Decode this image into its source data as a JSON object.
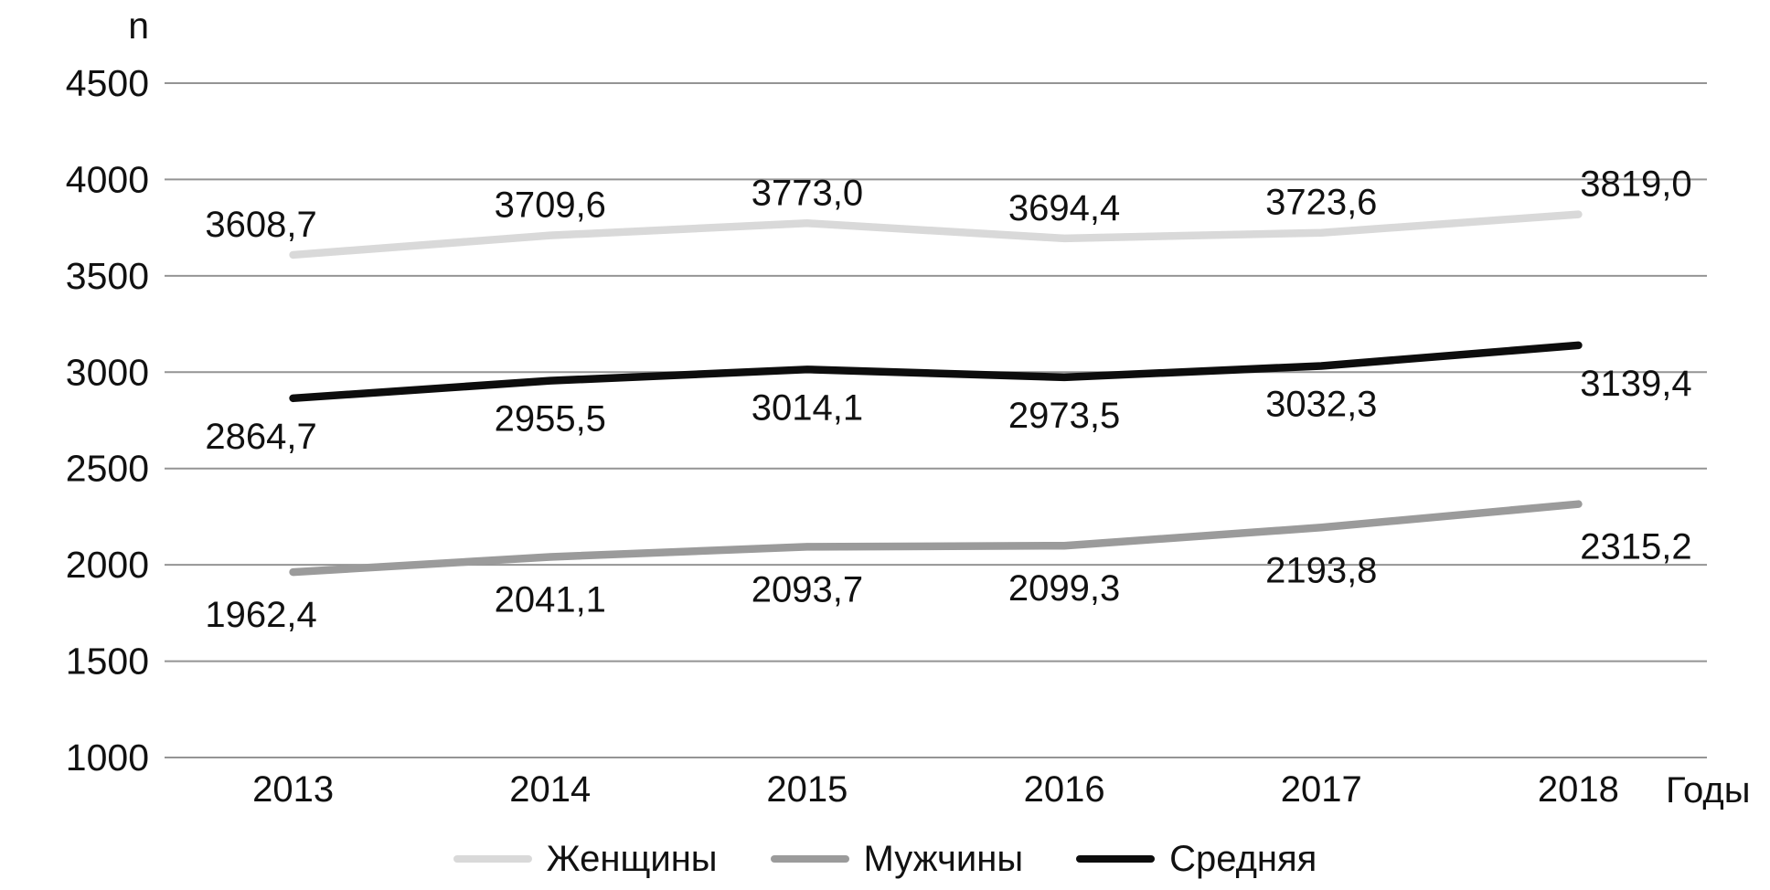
{
  "chart_data": {
    "type": "line",
    "title": "",
    "ylabel": "n",
    "xlabel": "Годы",
    "categories": [
      "2013",
      "2014",
      "2015",
      "2016",
      "2017",
      "2018"
    ],
    "y_ticks": [
      "4500",
      "4000",
      "3500",
      "3000",
      "2500",
      "2000",
      "1500",
      "1000"
    ],
    "ylim": [
      1000,
      4500
    ],
    "grid": true,
    "legend_position": "bottom",
    "series": [
      {
        "name": "Женщины",
        "color": "#d9d9d9",
        "values": [
          3608.7,
          3709.6,
          3773.0,
          3694.4,
          3723.6,
          3819.0
        ],
        "labels": [
          "3608,7",
          "3709,6",
          "3773,0",
          "3694,4",
          "3723,6",
          "3819,0"
        ],
        "label_side": "above"
      },
      {
        "name": "Мужчины",
        "color": "#9b9b9b",
        "values": [
          1962.4,
          2041.1,
          2093.7,
          2099.3,
          2193.8,
          2315.2
        ],
        "labels": [
          "1962,4",
          "2041,1",
          "2093,7",
          "2099,3",
          "2193,8",
          "2315,2"
        ],
        "label_side": "below"
      },
      {
        "name": "Средняя",
        "color": "#0d0d0d",
        "values": [
          2864.7,
          2955.5,
          3014.1,
          2973.5,
          3032.3,
          3139.4
        ],
        "labels": [
          "2864,7",
          "2955,5",
          "3014,1",
          "2973,5",
          "3032,3",
          "3139,4"
        ],
        "label_side": "below"
      }
    ],
    "colors": {
      "grid": "#949494",
      "text": "#111111",
      "background": "#ffffff"
    }
  }
}
